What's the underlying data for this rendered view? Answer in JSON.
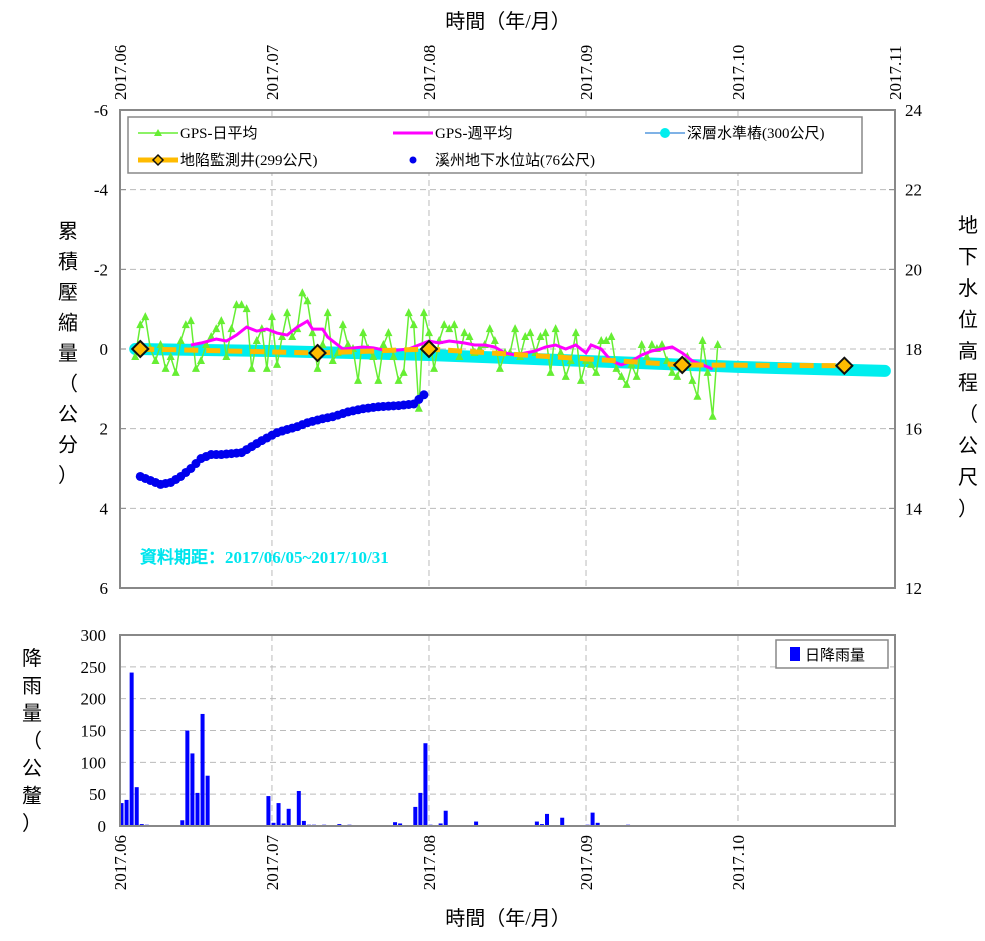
{
  "chart_data": [
    {
      "type": "line",
      "title": "",
      "top_xlabel": "時間（年/月）",
      "ylabel_left": "累積壓縮量（公分）",
      "ylabel_right": "地下水位高程（公尺）",
      "x_unit": "days since 2017-06-01",
      "xlim": [
        0,
        153
      ],
      "ylim_left": [
        6,
        -6
      ],
      "ylim_right": [
        12,
        24
      ],
      "x_ticks": [
        {
          "day": 0,
          "label": "2017.06"
        },
        {
          "day": 30,
          "label": "2017.07"
        },
        {
          "day": 61,
          "label": "2017.08"
        },
        {
          "day": 92,
          "label": "2017.09"
        },
        {
          "day": 122,
          "label": "2017.10"
        },
        {
          "day": 153,
          "label": "2017.11"
        }
      ],
      "y_ticks_left": [
        "-6",
        "-4",
        "-2",
        "0",
        "2",
        "4",
        "6"
      ],
      "y_ticks_right": [
        "24",
        "22",
        "20",
        "18",
        "16",
        "14",
        "12"
      ],
      "grid": true,
      "legend_position": "top",
      "note": "資料期距：2017/06/05~2017/10/31",
      "series": [
        {
          "name": "GPS-日平均",
          "axis": "left",
          "color": "#66ee33",
          "marker": "triangle",
          "start_day": 3,
          "values": [
            0.2,
            -0.6,
            -0.8,
            0,
            0.3,
            -0.1,
            0.5,
            0.2,
            0.6,
            -0.2,
            -0.6,
            -0.7,
            0.5,
            0.3,
            -0.1,
            -0.3,
            -0.5,
            -0.7,
            0.2,
            -0.5,
            -1.1,
            -1.1,
            -1.0,
            0.5,
            -0.2,
            -0.5,
            0.5,
            -0.8,
            0.4,
            -0.3,
            -0.9,
            -0.3,
            -0.5,
            -1.4,
            -1.2,
            -0.4,
            0.5,
            -0.1,
            -0.9,
            0.3,
            0.1,
            -0.6,
            -0.1,
            0,
            0.8,
            -0.4,
            0,
            0.2,
            0.8,
            -0.1,
            -0.4,
            0.2,
            0.8,
            0.6,
            -0.9,
            -0.6,
            1.5,
            -0.9,
            -0.4,
            0.5,
            -0.2,
            -0.6,
            -0.5,
            -0.6,
            0.2,
            -0.4,
            -0.3,
            0.1,
            0,
            -0.1,
            -0.5,
            -0.2,
            0.5,
            0.1,
            0.1,
            -0.5,
            0.2,
            -0.3,
            -0.4,
            0.1,
            -0.3,
            -0.4,
            0.6,
            -0.5,
            0.1,
            0.7,
            0.3,
            -0.4,
            0.8,
            0.3,
            0.4,
            0.6,
            -0.2,
            -0.2,
            -0.3,
            0.5,
            0.7,
            0.9,
            0.4,
            0.7,
            -0.1,
            0.2,
            -0.1,
            0,
            -0.1,
            0.3,
            0.6,
            0.7,
            0.3,
            0.2,
            0.8,
            1.2,
            -0.2,
            0.6,
            1.7,
            -0.1
          ]
        },
        {
          "name": "GPS-週平均",
          "axis": "left",
          "color": "#ff00ff",
          "points": [
            [
              14,
              -0.1
            ],
            [
              16,
              -0.15
            ],
            [
              19,
              -0.25
            ],
            [
              21,
              -0.2
            ],
            [
              23,
              -0.35
            ],
            [
              25,
              -0.55
            ],
            [
              27,
              -0.45
            ],
            [
              29,
              -0.5
            ],
            [
              31,
              -0.4
            ],
            [
              33,
              -0.35
            ],
            [
              35,
              -0.55
            ],
            [
              37,
              -0.7
            ],
            [
              38,
              -0.5
            ],
            [
              40,
              -0.5
            ],
            [
              41,
              -0.3
            ],
            [
              42,
              -0.2
            ],
            [
              44,
              0
            ],
            [
              48,
              -0.05
            ],
            [
              50,
              -0.03
            ],
            [
              53,
              0.05
            ],
            [
              57,
              0
            ],
            [
              59,
              -0.1
            ],
            [
              61,
              -0.2
            ],
            [
              63,
              -0.15
            ],
            [
              65,
              -0.2
            ],
            [
              68,
              -0.15
            ],
            [
              70,
              -0.1
            ],
            [
              72,
              -0.1
            ],
            [
              74,
              -0.05
            ],
            [
              76,
              0.1
            ],
            [
              78,
              0.15
            ],
            [
              80,
              0.1
            ],
            [
              82,
              0.05
            ],
            [
              84,
              -0.05
            ],
            [
              86,
              -0.1
            ],
            [
              88,
              0
            ],
            [
              90,
              -0.1
            ],
            [
              92,
              0.1
            ],
            [
              93,
              -0.1
            ],
            [
              95,
              0
            ],
            [
              97,
              0.3
            ],
            [
              99,
              0.4
            ],
            [
              101,
              0.3
            ],
            [
              103,
              0.15
            ],
            [
              105,
              0.05
            ],
            [
              107,
              0
            ],
            [
              109,
              -0.05
            ],
            [
              111,
              0.1
            ],
            [
              113,
              0.3
            ],
            [
              115,
              0.4
            ],
            [
              117,
              0.5
            ]
          ]
        },
        {
          "name": "深層水準樁(300公尺)",
          "axis": "left",
          "color": "#00eeee",
          "points": [
            [
              3,
              0
            ],
            [
              30,
              0.05
            ],
            [
              61,
              0.15
            ],
            [
              92,
              0.3
            ],
            [
              122,
              0.45
            ],
            [
              151,
              0.55
            ]
          ]
        },
        {
          "name": "地陷監測井(299公尺)",
          "axis": "left",
          "color": "#ffbb00",
          "marker": "diamond",
          "points": [
            [
              4,
              0
            ],
            [
              39,
              0.1
            ],
            [
              61,
              0
            ],
            [
              111,
              0.4
            ],
            [
              143,
              0.42
            ]
          ]
        },
        {
          "name": "溪州地下水位站(76公尺)",
          "axis": "right",
          "color": "#0000ee",
          "marker": "dot",
          "points": [
            [
              4,
              14.8
            ],
            [
              6,
              14.7
            ],
            [
              8,
              14.6
            ],
            [
              10,
              14.65
            ],
            [
              12,
              14.8
            ],
            [
              14,
              15.0
            ],
            [
              16,
              15.25
            ],
            [
              18,
              15.35
            ],
            [
              20,
              15.35
            ],
            [
              24,
              15.4
            ],
            [
              26,
              15.55
            ],
            [
              28,
              15.7
            ],
            [
              31,
              15.9
            ],
            [
              33,
              15.98
            ],
            [
              35,
              16.05
            ],
            [
              37,
              16.15
            ],
            [
              40,
              16.25
            ],
            [
              42,
              16.3
            ],
            [
              45,
              16.42
            ],
            [
              48,
              16.5
            ],
            [
              51,
              16.55
            ],
            [
              55,
              16.58
            ],
            [
              58,
              16.62
            ],
            [
              60,
              16.85
            ]
          ]
        }
      ]
    },
    {
      "type": "bar",
      "xlabel": "時間（年/月）",
      "ylabel": "降雨量（公釐）",
      "x_unit": "days since 2017-06-01",
      "xlim": [
        0,
        153
      ],
      "ylim": [
        0,
        300
      ],
      "y_ticks": [
        "0",
        "50",
        "100",
        "150",
        "200",
        "250",
        "300"
      ],
      "x_ticks": [
        {
          "day": 0,
          "label": "2017.06"
        },
        {
          "day": 30,
          "label": "2017.07"
        },
        {
          "day": 61,
          "label": "2017.08"
        },
        {
          "day": 92,
          "label": "2017.09"
        },
        {
          "day": 122,
          "label": "2017.10"
        }
      ],
      "legend_position": "top-right",
      "series": [
        {
          "name": "日降雨量",
          "color": "#0000ff",
          "points": [
            [
              0,
              36
            ],
            [
              1,
              41
            ],
            [
              2,
              241
            ],
            [
              3,
              61
            ],
            [
              4,
              3
            ],
            [
              5,
              2
            ],
            [
              12,
              9
            ],
            [
              13,
              150
            ],
            [
              14,
              114
            ],
            [
              15,
              52
            ],
            [
              16,
              176
            ],
            [
              17,
              79
            ],
            [
              29,
              47
            ],
            [
              30,
              5
            ],
            [
              31,
              36
            ],
            [
              32,
              4
            ],
            [
              33,
              27
            ],
            [
              35,
              55
            ],
            [
              36,
              8
            ],
            [
              37,
              2
            ],
            [
              38,
              2
            ],
            [
              40,
              2
            ],
            [
              43,
              3
            ],
            [
              45,
              2
            ],
            [
              54,
              6
            ],
            [
              55,
              4
            ],
            [
              58,
              30
            ],
            [
              59,
              52
            ],
            [
              60,
              130
            ],
            [
              61,
              2
            ],
            [
              63,
              4
            ],
            [
              64,
              24
            ],
            [
              70,
              7
            ],
            [
              82,
              7
            ],
            [
              83,
              3
            ],
            [
              84,
              19
            ],
            [
              87,
              13
            ],
            [
              92,
              2
            ],
            [
              93,
              21
            ],
            [
              94,
              5
            ],
            [
              100,
              2
            ]
          ]
        }
      ]
    }
  ]
}
